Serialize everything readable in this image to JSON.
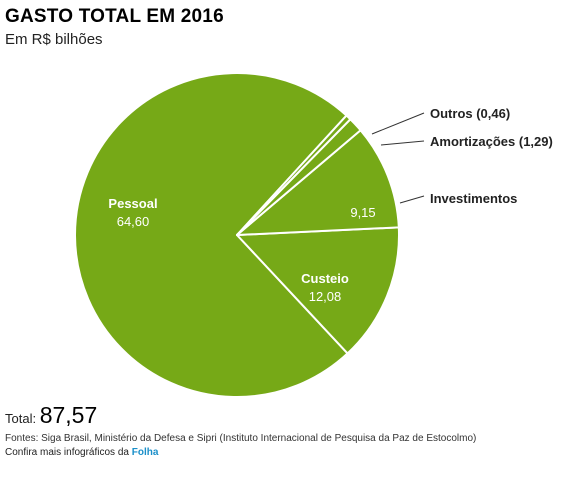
{
  "header": {
    "title": "GASTO TOTAL EM 2016",
    "subtitle": "Em R$ bilhões"
  },
  "footer": {
    "total_label": "Total:",
    "total_value": "87,57",
    "sources": "Fontes: Siga Brasil, Ministério da Defesa e Sipri (Instituto Internacional de Pesquisa da Paz de Estocolmo)",
    "more_text": "Confira mais infográficos da",
    "more_link": "Folha"
  },
  "colors": {
    "slice": "#76a917",
    "separator": "#ffffff",
    "leader": "#333333",
    "link": "#1a8fc9"
  },
  "chart_data": {
    "type": "pie",
    "title": "GASTO TOTAL EM 2016",
    "subtitle": "Em R$ bilhões",
    "slices": [
      {
        "label": "Pessoal",
        "value": 64.6,
        "value_text": "64,60",
        "label_position": "inside"
      },
      {
        "label": "Custeio",
        "value": 12.08,
        "value_text": "12,08",
        "label_position": "inside"
      },
      {
        "label": "Investimentos",
        "value": 9.15,
        "value_text": "9,15",
        "label_position": "outside"
      },
      {
        "label": "Amortizações (1,29)",
        "value": 1.29,
        "value_text": "",
        "label_position": "outside"
      },
      {
        "label": "Outros (0,46)",
        "value": 0.46,
        "value_text": "",
        "label_position": "outside"
      }
    ],
    "total": 87.57
  }
}
